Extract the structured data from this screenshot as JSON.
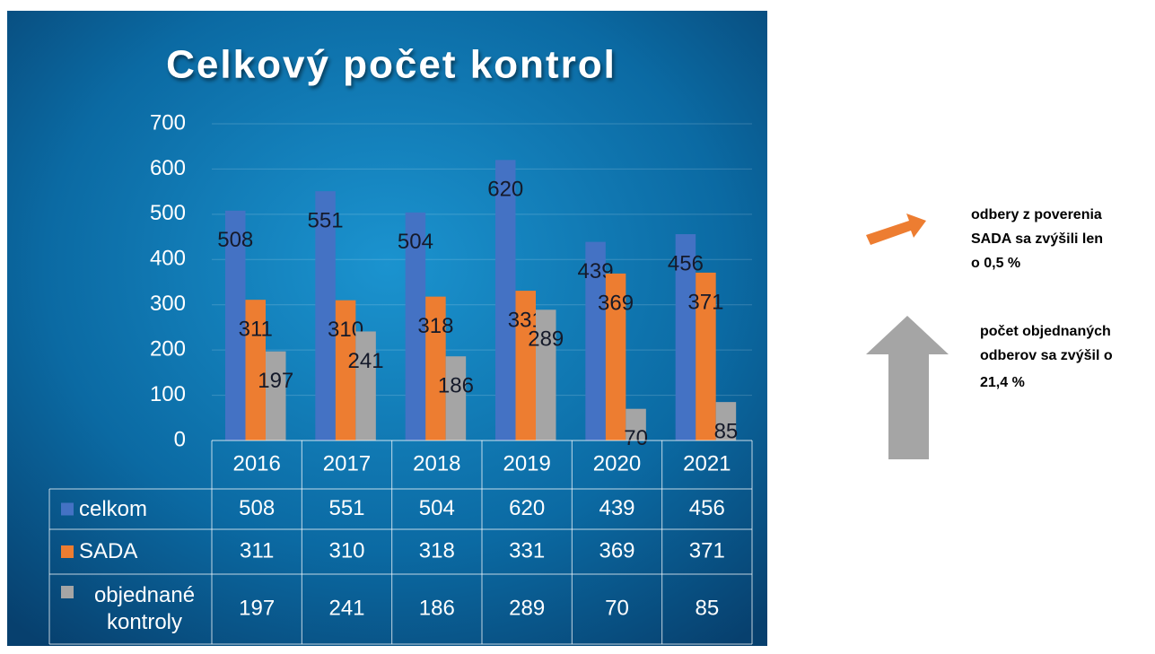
{
  "chart_data": {
    "type": "bar",
    "title": "Celkový počet kontrol",
    "categories": [
      "2016",
      "2017",
      "2018",
      "2019",
      "2020",
      "2021"
    ],
    "series": [
      {
        "name": "celkom",
        "color": "#4472c4",
        "values": [
          508,
          551,
          504,
          620,
          439,
          456
        ]
      },
      {
        "name": "SADA",
        "color": "#ed7d31",
        "values": [
          311,
          310,
          318,
          331,
          369,
          371
        ]
      },
      {
        "name": "objednané kontroly",
        "color": "#a5a5a5",
        "values": [
          197,
          241,
          186,
          289,
          70,
          85
        ]
      }
    ],
    "ylim": [
      0,
      700
    ],
    "yticks": [
      0,
      100,
      200,
      300,
      400,
      500,
      600,
      700
    ],
    "grid": true,
    "annotations": [
      {
        "lines": [
          "odbery z poverenia",
          "SADA sa zvýšili len",
          "o 0,5 %"
        ]
      },
      {
        "lines": [
          "počet objednaných",
          "odberov sa zvýšil o",
          "21,4 %"
        ]
      }
    ]
  }
}
